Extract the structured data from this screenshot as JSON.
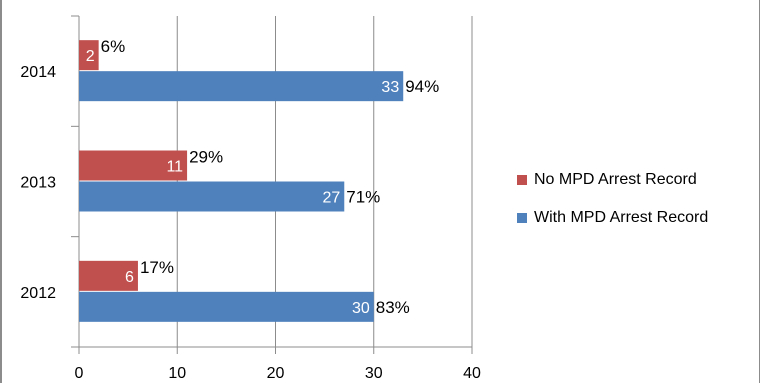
{
  "chart_data": {
    "type": "bar",
    "orientation": "horizontal",
    "categories": [
      "2012",
      "2013",
      "2014"
    ],
    "series": [
      {
        "name": "No MPD Arrest Record",
        "color": "#c0504d",
        "values": [
          6,
          11,
          2
        ],
        "percent_labels": [
          "17%",
          "29%",
          "6%"
        ]
      },
      {
        "name": "With MPD Arrest Record",
        "color": "#4f81bd",
        "values": [
          30,
          27,
          33
        ],
        "percent_labels": [
          "83%",
          "71%",
          "94%"
        ]
      }
    ],
    "xlim": [
      0,
      40
    ],
    "xticks": [
      "0",
      "10",
      "20",
      "30",
      "40"
    ],
    "grid": true,
    "legend_position": "right"
  }
}
